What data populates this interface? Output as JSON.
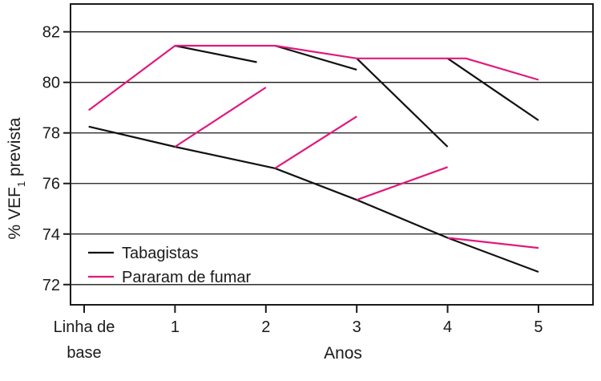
{
  "chart_data": {
    "type": "line",
    "title": "",
    "xlabel": "Anos",
    "ylabel": "% VEF",
    "ylabel_subscript": "1",
    "ylabel_suffix": " prevista",
    "x_categories": [
      {
        "value": 0,
        "lines": [
          "Linha de",
          "base"
        ]
      },
      {
        "value": 1,
        "lines": [
          "1"
        ]
      },
      {
        "value": 2,
        "lines": [
          "2"
        ]
      },
      {
        "value": 3,
        "lines": [
          "3"
        ]
      },
      {
        "value": 4,
        "lines": [
          "4"
        ]
      },
      {
        "value": 5,
        "lines": [
          "5"
        ]
      }
    ],
    "xlim": [
      -0.15,
      5.6
    ],
    "ylim": [
      71.2,
      83.1
    ],
    "yticks": [
      72,
      74,
      76,
      78,
      80,
      82
    ],
    "grid": "horizontal",
    "legend_position": "bottom-left",
    "colors": {
      "smokers": "#111111",
      "quitters": "#e0197d"
    },
    "series": [
      {
        "name": "Tabagistas",
        "key": "smokers",
        "segments": [
          [
            [
              0.05,
              78.25
            ],
            [
              1.0,
              77.45
            ],
            [
              2.1,
              76.6
            ],
            [
              3.0,
              75.35
            ],
            [
              4.0,
              73.85
            ],
            [
              5.0,
              72.5
            ]
          ],
          [
            [
              1.0,
              81.45
            ],
            [
              1.9,
              80.8
            ]
          ],
          [
            [
              2.1,
              81.45
            ],
            [
              3.0,
              80.5
            ]
          ],
          [
            [
              3.0,
              80.95
            ],
            [
              4.0,
              77.45
            ]
          ],
          [
            [
              4.0,
              80.95
            ],
            [
              5.0,
              78.5
            ]
          ]
        ]
      },
      {
        "name": "Pararam de fumar",
        "key": "quitters",
        "segments": [
          [
            [
              0.05,
              78.9
            ],
            [
              1.0,
              81.45
            ],
            [
              2.1,
              81.45
            ],
            [
              3.0,
              80.95
            ],
            [
              4.2,
              80.95
            ],
            [
              5.0,
              80.1
            ]
          ],
          [
            [
              1.0,
              77.45
            ],
            [
              2.0,
              79.8
            ]
          ],
          [
            [
              2.1,
              76.6
            ],
            [
              3.0,
              78.65
            ]
          ],
          [
            [
              3.0,
              75.35
            ],
            [
              4.0,
              76.65
            ]
          ],
          [
            [
              4.0,
              73.85
            ],
            [
              5.0,
              73.45
            ]
          ]
        ]
      }
    ]
  }
}
